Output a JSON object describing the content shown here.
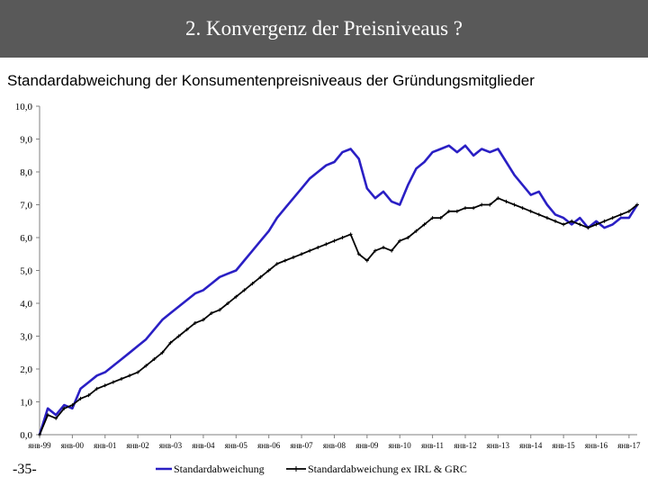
{
  "header": {
    "title": "2. Konvergenz der Preisniveaus ?"
  },
  "page_number": "-35-",
  "colors": {
    "header_bg": "#595959",
    "series1": "#2a1fc4",
    "series2": "#000000",
    "grid": "#d9d9d9"
  },
  "chart_data": {
    "type": "line",
    "title": "Standardabweichung der Konsumentenpreisniveaus der Gründungsmitglieder",
    "xlabel": "",
    "ylabel": "",
    "ylim": [
      0,
      10
    ],
    "yticks": [
      "0,0",
      "1,0",
      "2,0",
      "3,0",
      "4,0",
      "5,0",
      "6,0",
      "7,0",
      "8,0",
      "9,0",
      "10,0"
    ],
    "xtick_labels": [
      "янв-99",
      "янв-00",
      "янв-01",
      "янв-02",
      "янв-03",
      "янв-04",
      "янв-05",
      "янв-06",
      "янв-07",
      "янв-08",
      "янв-09",
      "янв-10",
      "янв-11",
      "янв-12",
      "янв-13",
      "янв-14",
      "янв-15",
      "янв-16",
      "янв-17"
    ],
    "x": [
      1999.0,
      1999.25,
      1999.5,
      1999.75,
      2000.0,
      2000.25,
      2000.5,
      2000.75,
      2001.0,
      2001.25,
      2001.5,
      2001.75,
      2002.0,
      2002.25,
      2002.5,
      2002.75,
      2003.0,
      2003.25,
      2003.5,
      2003.75,
      2004.0,
      2004.25,
      2004.5,
      2004.75,
      2005.0,
      2005.25,
      2005.5,
      2005.75,
      2006.0,
      2006.25,
      2006.5,
      2006.75,
      2007.0,
      2007.25,
      2007.5,
      2007.75,
      2008.0,
      2008.25,
      2008.5,
      2008.75,
      2009.0,
      2009.25,
      2009.5,
      2009.75,
      2010.0,
      2010.25,
      2010.5,
      2010.75,
      2011.0,
      2011.25,
      2011.5,
      2011.75,
      2012.0,
      2012.25,
      2012.5,
      2012.75,
      2013.0,
      2013.25,
      2013.5,
      2013.75,
      2014.0,
      2014.25,
      2014.5,
      2014.75,
      2015.0,
      2015.25,
      2015.5,
      2015.75,
      2016.0,
      2016.25,
      2016.5,
      2016.75,
      2017.0,
      2017.25
    ],
    "series": [
      {
        "name": "Standardabweichung",
        "values": [
          0.0,
          0.8,
          0.6,
          0.9,
          0.8,
          1.4,
          1.6,
          1.8,
          1.9,
          2.1,
          2.3,
          2.5,
          2.7,
          2.9,
          3.2,
          3.5,
          3.7,
          3.9,
          4.1,
          4.3,
          4.4,
          4.6,
          4.8,
          4.9,
          5.0,
          5.3,
          5.6,
          5.9,
          6.2,
          6.6,
          6.9,
          7.2,
          7.5,
          7.8,
          8.0,
          8.2,
          8.3,
          8.6,
          8.7,
          8.4,
          7.5,
          7.2,
          7.4,
          7.1,
          7.0,
          7.6,
          8.1,
          8.3,
          8.6,
          8.7,
          8.8,
          8.6,
          8.8,
          8.5,
          8.7,
          8.6,
          8.7,
          8.3,
          7.9,
          7.6,
          7.3,
          7.4,
          7.0,
          6.7,
          6.6,
          6.4,
          6.6,
          6.3,
          6.5,
          6.3,
          6.4,
          6.6,
          6.6,
          7.0
        ]
      },
      {
        "name": "Standardabweichung ex IRL & GRC",
        "values": [
          0.0,
          0.6,
          0.5,
          0.8,
          0.9,
          1.1,
          1.2,
          1.4,
          1.5,
          1.6,
          1.7,
          1.8,
          1.9,
          2.1,
          2.3,
          2.5,
          2.8,
          3.0,
          3.2,
          3.4,
          3.5,
          3.7,
          3.8,
          4.0,
          4.2,
          4.4,
          4.6,
          4.8,
          5.0,
          5.2,
          5.3,
          5.4,
          5.5,
          5.6,
          5.7,
          5.8,
          5.9,
          6.0,
          6.1,
          5.5,
          5.3,
          5.6,
          5.7,
          5.6,
          5.9,
          6.0,
          6.2,
          6.4,
          6.6,
          6.6,
          6.8,
          6.8,
          6.9,
          6.9,
          7.0,
          7.0,
          7.2,
          7.1,
          7.0,
          6.9,
          6.8,
          6.7,
          6.6,
          6.5,
          6.4,
          6.5,
          6.4,
          6.3,
          6.4,
          6.5,
          6.6,
          6.7,
          6.8,
          7.0
        ]
      }
    ],
    "legend": [
      "Standardabweichung",
      "Standardabweichung ex IRL & GRC"
    ],
    "legend_position": "bottom",
    "grid": false
  }
}
